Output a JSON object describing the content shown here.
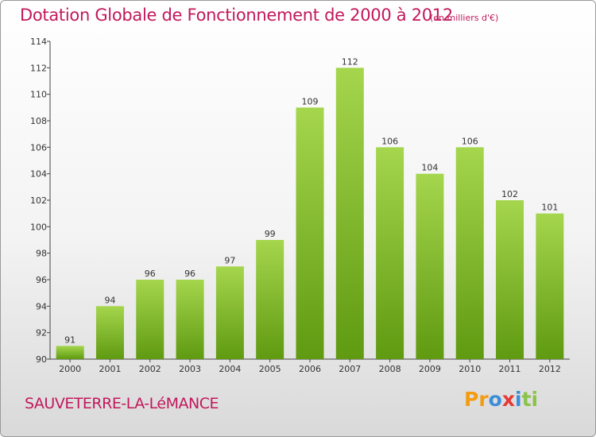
{
  "header": {
    "title": "Dotation Globale de Fonctionnement de 2000 à 2012",
    "subtitle": "(en milliers d'€)"
  },
  "footer": {
    "commune": "SAUVETERRE-LA-LéMANCE",
    "logo": [
      "P",
      "r",
      "o",
      "x",
      "i",
      "t",
      "i"
    ]
  },
  "colors": {
    "accent": "#c2185b",
    "bar_light": "#a5d64d",
    "bar_dark": "#5f9a11",
    "logo": [
      "#f39c12",
      "#f39c12",
      "#3c8dd8",
      "#e53935",
      "#3c8dd8",
      "#8bc34a",
      "#8bc34a"
    ]
  },
  "chart_data": {
    "type": "bar",
    "title": "Dotation Globale de Fonctionnement de 2000 à 2012",
    "subtitle": "(en milliers d'€)",
    "categories": [
      "2000",
      "2001",
      "2002",
      "2003",
      "2004",
      "2005",
      "2006",
      "2007",
      "2008",
      "2009",
      "2010",
      "2011",
      "2012"
    ],
    "values": [
      91,
      94,
      96,
      96,
      97,
      99,
      109,
      112,
      106,
      104,
      106,
      102,
      101
    ],
    "ylim": [
      90,
      114
    ],
    "yticks": [
      90,
      92,
      94,
      96,
      98,
      100,
      102,
      104,
      106,
      108,
      110,
      112,
      114
    ],
    "grid": false,
    "legend": "none"
  }
}
